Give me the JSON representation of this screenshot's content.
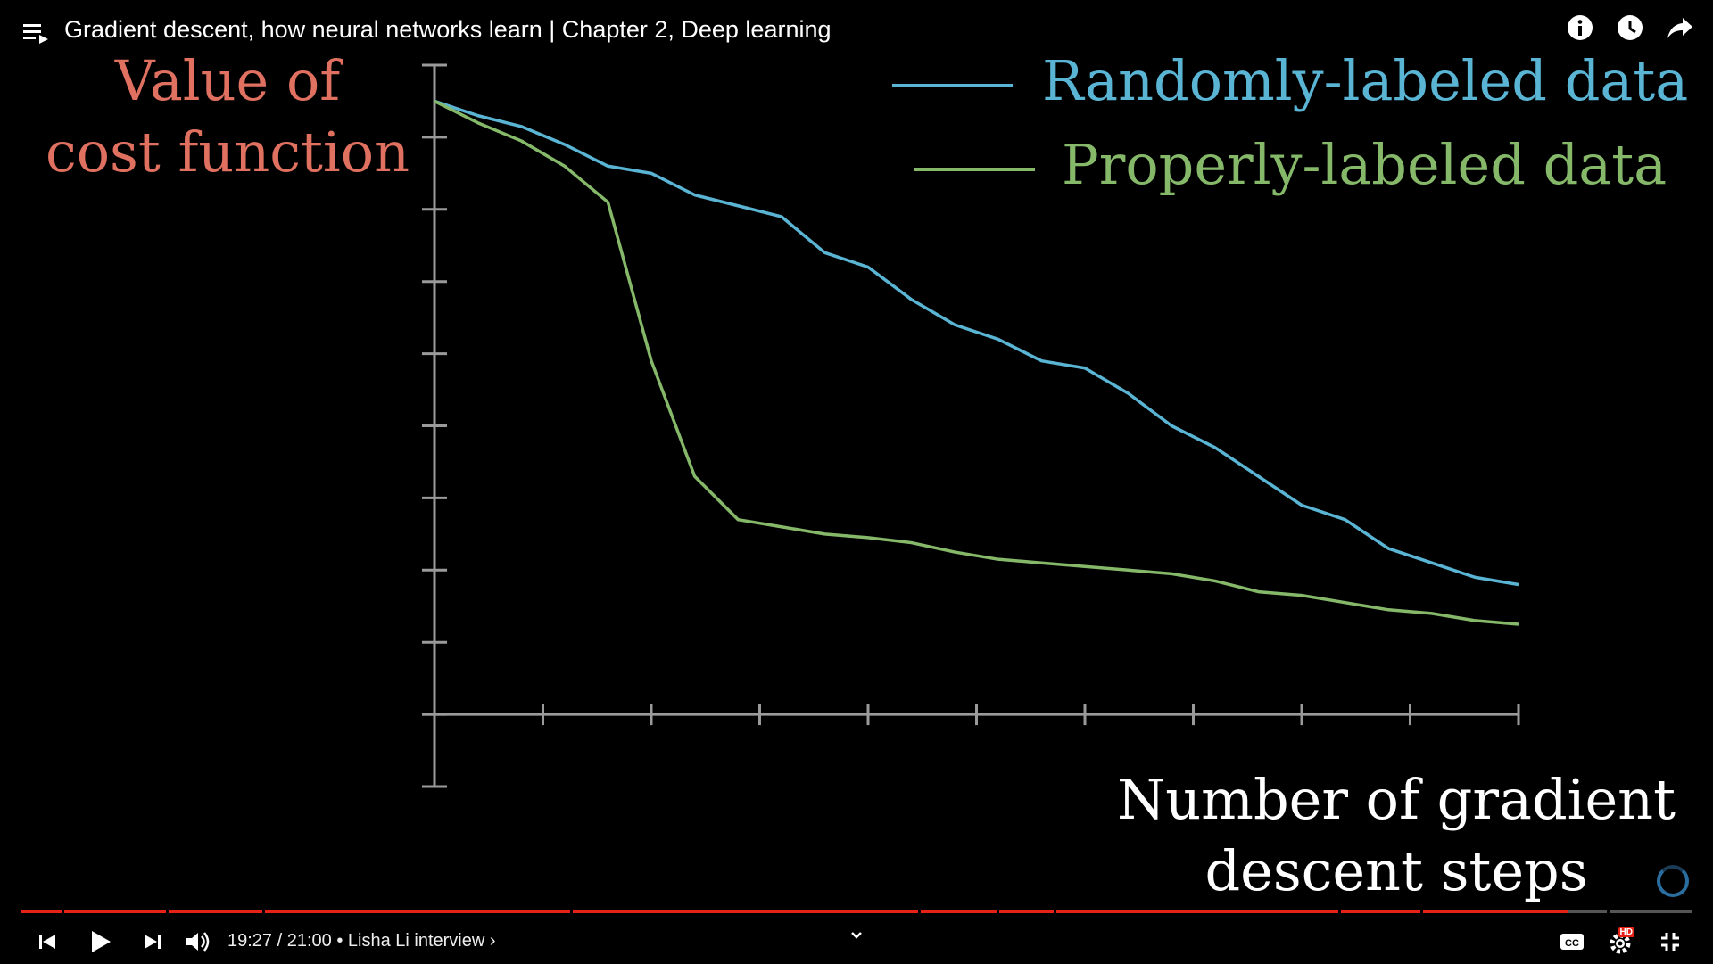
{
  "player": {
    "title": "Gradient descent, how neural networks learn | Chapter 2, Deep learning",
    "time": "19:27 / 21:00",
    "chapter": "• Lisha Li interview ›",
    "progress": 0.926,
    "hd_badge": "HD",
    "controls": [
      "previous-icon",
      "play-icon",
      "next-icon",
      "volume-icon",
      "subtitles-icon",
      "settings-icon",
      "exit-fullscreen-icon"
    ],
    "top_icons": [
      "info-icon",
      "watch-later-icon",
      "share-icon"
    ],
    "colors": {
      "progress": "#e62117",
      "background": "#000000"
    }
  },
  "chart_data": {
    "type": "line",
    "ylabel_line1": "Value of",
    "ylabel_line2": "cost function",
    "xlabel_line1": "Number of gradient",
    "xlabel_line2": "descent steps",
    "xlim": [
      0,
      10
    ],
    "ylim": [
      -1,
      9
    ],
    "ylabel_color": "#e07060",
    "x_ticks": 10,
    "y_ticks": 10,
    "series": [
      {
        "name": "Randomly-labeled data",
        "color": "#5ab4d4",
        "x": [
          0,
          0.4,
          0.8,
          1.2,
          1.6,
          2.0,
          2.4,
          2.8,
          3.2,
          3.6,
          4.0,
          4.4,
          4.8,
          5.2,
          5.6,
          6.0,
          6.4,
          6.8,
          7.2,
          7.6,
          8.0,
          8.4,
          8.8,
          9.2,
          9.6,
          10.0
        ],
        "y": [
          8.5,
          8.3,
          8.15,
          7.9,
          7.6,
          7.5,
          7.2,
          7.05,
          6.9,
          6.4,
          6.2,
          5.75,
          5.4,
          5.2,
          4.9,
          4.8,
          4.45,
          4.0,
          3.7,
          3.3,
          2.9,
          2.7,
          2.3,
          2.1,
          1.9,
          1.8
        ]
      },
      {
        "name": "Properly-labeled data",
        "color": "#86b86a",
        "x": [
          0,
          0.4,
          0.8,
          1.2,
          1.6,
          2.0,
          2.4,
          2.8,
          3.2,
          3.6,
          4.0,
          4.4,
          4.8,
          5.2,
          5.6,
          6.0,
          6.4,
          6.8,
          7.2,
          7.6,
          8.0,
          8.4,
          8.8,
          9.2,
          9.6,
          10.0
        ],
        "y": [
          8.5,
          8.2,
          7.95,
          7.6,
          7.1,
          4.9,
          3.3,
          2.7,
          2.6,
          2.5,
          2.45,
          2.38,
          2.25,
          2.15,
          2.1,
          2.05,
          2.0,
          1.95,
          1.85,
          1.7,
          1.65,
          1.55,
          1.45,
          1.4,
          1.3,
          1.25
        ]
      }
    ]
  }
}
